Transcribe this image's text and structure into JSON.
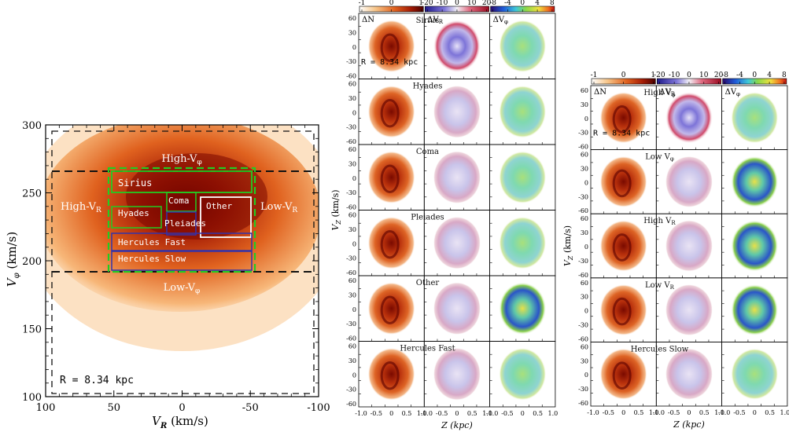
{
  "chart_data": [
    {
      "type": "heatmap",
      "panel": "main velocity-plane density",
      "xlabel": "V",
      "xlabel_sub": "R",
      "xlabel_unit": " (km/s)",
      "ylabel": "V",
      "ylabel_sub": "φ",
      "ylabel_unit": " (km/s)",
      "xlim": [
        100,
        -100
      ],
      "ylim": [
        100,
        300
      ],
      "xticks": [
        100,
        50,
        0,
        -50,
        -100
      ],
      "yticks": [
        100,
        150,
        200,
        250,
        300
      ],
      "annotation": "R = 8.34 kpc",
      "density_center": [
        20,
        225
      ],
      "regions": [
        {
          "label": "High-V",
          "sub": "φ",
          "x": 0,
          "y": 278,
          "kind": "text"
        },
        {
          "label": "Low-V",
          "sub": "φ",
          "x": 0,
          "y": 185,
          "kind": "text"
        },
        {
          "label": "High-V",
          "sub": "R",
          "x": 82,
          "y": 240,
          "kind": "text"
        },
        {
          "label": "Low-V",
          "sub": "R",
          "x": -78,
          "y": 240,
          "kind": "text"
        },
        {
          "label": "Sirius",
          "xrange": [
            50,
            -52
          ],
          "yrange": [
            250,
            265
          ],
          "color": "#22cc22"
        },
        {
          "label": "Coma",
          "xrange": [
            10,
            -12
          ],
          "yrange": [
            236,
            250
          ],
          "color": "#22cc22"
        },
        {
          "label": "Hyades",
          "xrange": [
            50,
            15
          ],
          "yrange": [
            225,
            240
          ],
          "color": "#22cc22"
        },
        {
          "label": "Pleiades",
          "xrange": [
            10,
            -12
          ],
          "yrange": [
            218,
            235
          ],
          "color": "#3333aa"
        },
        {
          "label": "Other",
          "xrange": [
            -15,
            -52
          ],
          "yrange": [
            216,
            248
          ],
          "color": "#ffffff"
        },
        {
          "label": "Hercules Fast",
          "xrange": [
            50,
            -52
          ],
          "yrange": [
            206,
            218
          ],
          "color": "#3333aa"
        },
        {
          "label": "Hercules Slow",
          "xrange": [
            50,
            -52
          ],
          "yrange": [
            193,
            206
          ],
          "color": "#3333aa"
        }
      ],
      "green_dashed_box": {
        "xrange": [
          52,
          -54
        ],
        "yrange": [
          193,
          267
        ]
      },
      "black_dashed_lines": {
        "upper_y": 267,
        "lower_y": 193,
        "outer_box": {
          "xrange": [
            95,
            -97
          ],
          "yrange": [
            104,
            297
          ]
        }
      }
    },
    {
      "type": "heatmap",
      "panel": "middle grid",
      "rows": [
        "Sirius",
        "Hyades",
        "Coma",
        "Pleiades",
        "Other",
        "Hercules Fast"
      ],
      "columns": [
        "ΔN",
        "ΔV_R",
        "ΔV_φ"
      ],
      "colorbars": [
        {
          "ticks": [
            "-1",
            "0",
            "1"
          ],
          "range": [
            -1,
            1
          ]
        },
        {
          "ticks": [
            "-20",
            "-10",
            "0",
            "10",
            "20"
          ],
          "range": [
            -20,
            20
          ]
        },
        {
          "ticks": [
            "-8",
            "-4",
            "0",
            "4",
            "8"
          ],
          "range": [
            -8,
            8
          ]
        }
      ],
      "xlabel": "Z (kpc)",
      "ylabel": "V_Z (km/s)",
      "xticks": [
        "-1.0",
        "-0.5",
        "0",
        "0.5",
        "1.0"
      ],
      "yticks": [
        "60",
        "30",
        "0",
        "-30",
        "-60"
      ],
      "annotation": "R = 8.34 kpc"
    },
    {
      "type": "heatmap",
      "panel": "right grid",
      "rows": [
        "High V_φ",
        "Low V_φ",
        "High V_R",
        "Low V_R",
        "Hercules Slow"
      ],
      "columns": [
        "ΔN",
        "ΔV_R",
        "ΔV_φ"
      ],
      "colorbars": [
        {
          "ticks": [
            "-1",
            "0",
            "1"
          ],
          "range": [
            -1,
            1
          ]
        },
        {
          "ticks": [
            "-20",
            "-10",
            "0",
            "10",
            "20"
          ],
          "range": [
            -20,
            20
          ]
        },
        {
          "ticks": [
            "-8",
            "-4",
            "0",
            "4",
            "8"
          ],
          "range": [
            -8,
            8
          ]
        }
      ],
      "xlabel": "Z (kpc)",
      "ylabel": "V_Z (km/s)",
      "xticks": [
        "-1.0",
        "-0.5",
        "0",
        "0.5",
        "1.0"
      ],
      "yticks": [
        "60",
        "30",
        "0",
        "-30",
        "-60"
      ],
      "annotation": "R = 8.34 kpc"
    }
  ],
  "mid_labels": {
    "rows": [
      "Sirius",
      "Hyades",
      "Coma",
      "Pleiades",
      "Other",
      "Hercules Fast"
    ],
    "cols": [
      "ΔN",
      "ΔV",
      "ΔV"
    ],
    "col_subs": [
      "",
      "R",
      "φ"
    ],
    "cbar_ticks": [
      [
        "-1",
        "0",
        "1"
      ],
      [
        "-20",
        "-10",
        "0",
        "10",
        "20"
      ],
      [
        "-8",
        "-4",
        "0",
        "4",
        "8"
      ]
    ],
    "xticks": [
      "-1.0",
      "-0.5",
      "0",
      "0.5",
      "1.0"
    ],
    "yticks": [
      "60",
      "30",
      "0",
      "-30",
      "-60"
    ],
    "xlabel": "Z (kpc)",
    "ylabel": "V",
    "ylabel_sub": "Z",
    "ylabel_unit": " (km/s)",
    "annotation": "R = 8.34 kpc"
  },
  "right_labels": {
    "rows": [
      "High V_φ",
      "Low V_φ",
      "High V_R",
      "Low V_R",
      "Hercules Slow"
    ],
    "cols": [
      "ΔN",
      "ΔV",
      "ΔV"
    ],
    "col_subs": [
      "",
      "R",
      "φ"
    ],
    "cbar_ticks": [
      [
        "-1",
        "0",
        "1"
      ],
      [
        "-20",
        "-10",
        "0",
        "10",
        "20"
      ],
      [
        "-8",
        "-4",
        "0",
        "4",
        "8"
      ]
    ],
    "xticks": [
      "-1.0",
      "-0.5",
      "0",
      "0.5",
      "1.0"
    ],
    "yticks": [
      "60",
      "30",
      "0",
      "-30",
      "-60"
    ],
    "xlabel": "Z (kpc)",
    "ylabel": "V",
    "ylabel_sub": "Z",
    "ylabel_unit": " (km/s)",
    "annotation": "R = 8.34 kpc"
  },
  "colors": {
    "density_low": "#f6c38a",
    "density_mid": "#d9531e",
    "density_high": "#6e0000",
    "green_box": "#22cc22",
    "blue_box": "#3333aa",
    "white_box": "#ffffff"
  }
}
